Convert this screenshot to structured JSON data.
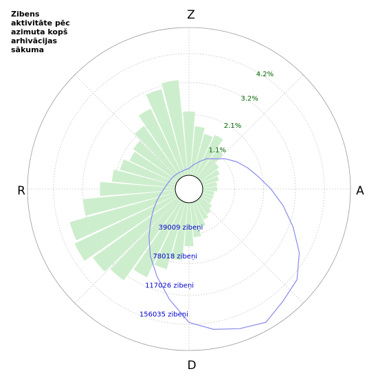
{
  "title_lines": [
    "Zibens",
    "aktivitāte pēc",
    "azimuta kopš",
    "arhivācijas",
    "sākuma"
  ],
  "chart_data": {
    "type": "polar",
    "compass": {
      "north": "Z",
      "east": "A",
      "south": "D",
      "west": "R"
    },
    "legend": "none",
    "grid": true,
    "colors": {
      "bars": "#cdeecd",
      "line": "#8888ee",
      "grid": "#cccccc",
      "pct_label": "#006400",
      "count_label": "#0000cc"
    },
    "percent_ticks": [
      {
        "value": 1.1,
        "label": "1.1%"
      },
      {
        "value": 2.1,
        "label": "2.1%"
      },
      {
        "value": 3.2,
        "label": "3.2%"
      },
      {
        "value": 4.2,
        "label": "4.2%"
      }
    ],
    "count_ticks": [
      {
        "value": 39009,
        "label": "39009 zibeņi"
      },
      {
        "value": 78018,
        "label": "78018 zibeņi"
      },
      {
        "value": 117026,
        "label": "117026 zibeņi"
      },
      {
        "value": 156035,
        "label": "156035 zibeņi"
      }
    ],
    "percent_scale_max": 5.1,
    "count_scale_max": 195044,
    "bars_percent": {
      "direction_deg": [
        0,
        10,
        20,
        30,
        40,
        50,
        60,
        70,
        80,
        90,
        100,
        110,
        120,
        130,
        140,
        150,
        160,
        170,
        180,
        190,
        200,
        210,
        220,
        230,
        240,
        250,
        260,
        270,
        280,
        290,
        300,
        310,
        320,
        330,
        340,
        350
      ],
      "values": [
        2.2,
        1.7,
        1.5,
        1.6,
        1.2,
        0.8,
        0.7,
        0.6,
        0.5,
        0.5,
        0.4,
        0.4,
        0.4,
        0.5,
        0.6,
        0.7,
        0.9,
        1.2,
        1.5,
        2.0,
        2.4,
        2.9,
        3.4,
        3.6,
        3.9,
        3.8,
        3.2,
        2.6,
        2.2,
        2.0,
        1.8,
        1.9,
        2.2,
        2.6,
        3.1,
        3.3
      ]
    },
    "counts": {
      "direction_deg": [
        0,
        10,
        20,
        30,
        40,
        50,
        60,
        70,
        80,
        90,
        100,
        110,
        120,
        130,
        140,
        150,
        160,
        170,
        180,
        190,
        200,
        210,
        220,
        230,
        240,
        250,
        260,
        270,
        280,
        290,
        300,
        310,
        320,
        330,
        340,
        350
      ],
      "values": [
        9000,
        14000,
        20000,
        28000,
        34000,
        44000,
        54000,
        64000,
        75000,
        90000,
        108000,
        128000,
        150000,
        168000,
        175000,
        185000,
        178000,
        170000,
        158000,
        130000,
        105000,
        84000,
        64000,
        48000,
        36000,
        27000,
        20000,
        15000,
        12000,
        10000,
        9000,
        8000,
        7500,
        7000,
        7000,
        8000
      ]
    }
  }
}
